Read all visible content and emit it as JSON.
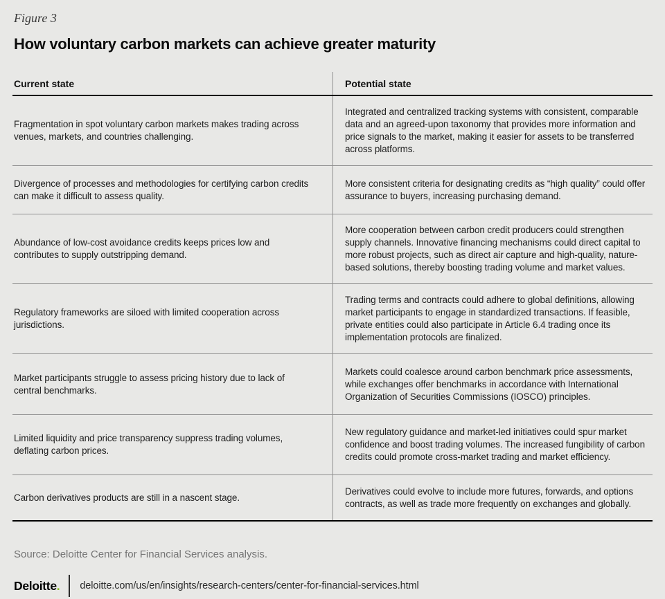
{
  "figure": {
    "label": "Figure 3",
    "title": "How voluntary carbon markets can achieve greater maturity"
  },
  "table": {
    "columns": [
      "Current state",
      "Potential state"
    ],
    "rows": [
      {
        "current": "Fragmentation in spot voluntary carbon markets makes trading across venues, markets, and countries challenging.",
        "potential": "Integrated and centralized tracking systems with consistent, comparable data and an agreed-upon taxonomy that provides more information and price signals to the market, making it easier for assets to be transferred across platforms."
      },
      {
        "current": "Divergence of processes and methodologies for certifying carbon credits can make it difficult to assess quality.",
        "potential": "More consistent criteria for designating credits as “high quality” could offer assurance to buyers, increasing purchasing demand."
      },
      {
        "current": "Abundance of low-cost avoidance credits keeps prices low and contributes to supply outstripping demand.",
        "potential": "More cooperation between carbon credit producers could strengthen supply channels. Innovative financing mechanisms could direct capital to more robust projects, such as direct air capture and high-quality, nature-based solutions, thereby boosting trading volume and market values."
      },
      {
        "current": "Regulatory frameworks are siloed with limited cooperation across jurisdictions.",
        "potential": "Trading terms and contracts could adhere to global definitions, allowing market participants to engage in standardized transactions. If feasible, private entities could also participate in Article 6.4 trading once its implementation protocols are finalized."
      },
      {
        "current": "Market participants struggle to assess pricing history due to lack of central benchmarks.",
        "potential": "Markets could coalesce around carbon benchmark price assessments, while exchanges offer benchmarks in accordance with International Organization of Securities Commissions (IOSCO) principles."
      },
      {
        "current": "Limited liquidity and price transparency suppress trading volumes, deflating carbon prices.",
        "potential": "New regulatory guidance and market-led initiatives could spur market confidence and boost trading volumes. The increased fungibility of carbon credits could promote cross-market trading and market efficiency."
      },
      {
        "current": "Carbon derivatives products are still in a nascent stage.",
        "potential": "Derivatives could evolve to include more futures, forwards, and options contracts, as well as trade more frequently on exchanges and globally."
      }
    ]
  },
  "footer": {
    "source": "Source: Deloitte Center for Financial Services analysis.",
    "brand": "Deloitte",
    "brand_dot": ".",
    "url": "deloitte.com/us/en/insights/research-centers/center-for-financial-services.html"
  },
  "colors": {
    "background": "#e8e8e6",
    "accent_green": "#86BC25",
    "rule_gray": "#8f8f8f",
    "rule_black": "#000000"
  }
}
